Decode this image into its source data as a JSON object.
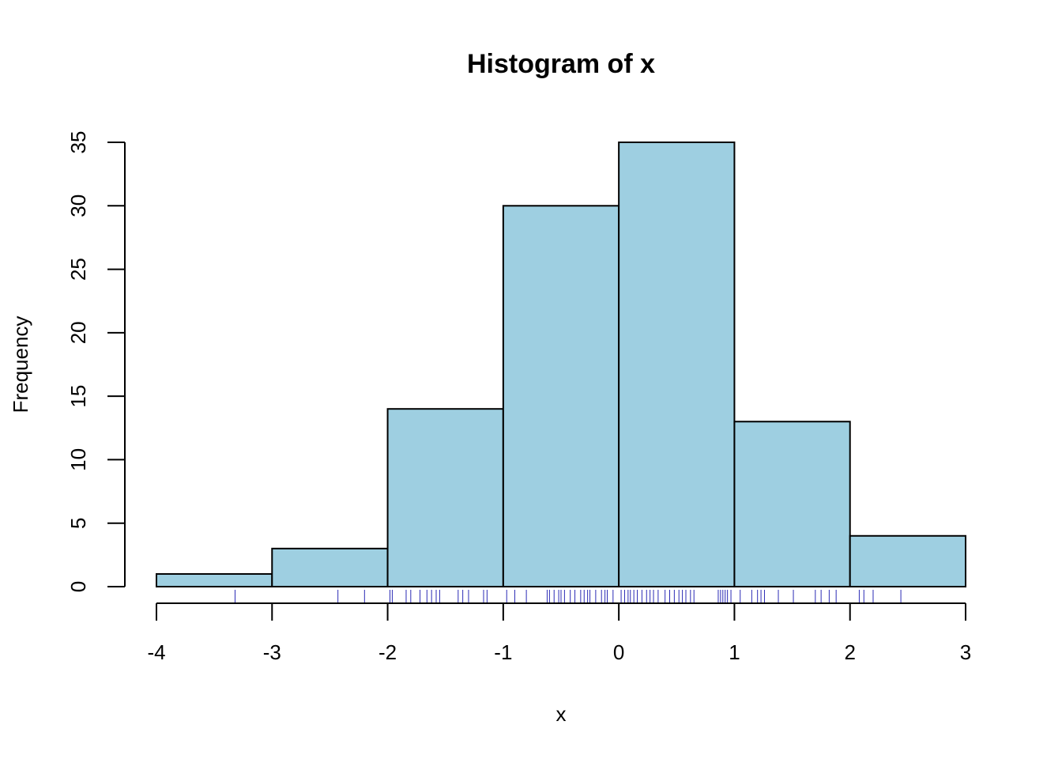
{
  "chart_data": {
    "type": "bar",
    "subtype": "histogram",
    "title": "Histogram of x",
    "xlabel": "x",
    "ylabel": "Frequency",
    "bins": [
      {
        "x0": -4,
        "x1": -3,
        "count": 1
      },
      {
        "x0": -3,
        "x1": -2,
        "count": 3
      },
      {
        "x0": -2,
        "x1": -1,
        "count": 14
      },
      {
        "x0": -1,
        "x1": 0,
        "count": 30
      },
      {
        "x0": 0,
        "x1": 1,
        "count": 35
      },
      {
        "x0": 1,
        "x1": 2,
        "count": 13
      },
      {
        "x0": 2,
        "x1": 3,
        "count": 4
      }
    ],
    "xlim": [
      -4,
      3
    ],
    "ylim": [
      0,
      35
    ],
    "x_ticks": [
      -4,
      -3,
      -2,
      -1,
      0,
      1,
      2,
      3
    ],
    "y_ticks": [
      0,
      5,
      10,
      15,
      20,
      25,
      30,
      35
    ],
    "rug": [
      -3.32,
      -2.43,
      -2.2,
      -1.98,
      -1.96,
      -1.84,
      -1.8,
      -1.72,
      -1.66,
      -1.62,
      -1.58,
      -1.55,
      -1.39,
      -1.35,
      -1.3,
      -1.17,
      -1.14,
      -0.97,
      -0.9,
      -0.8,
      -0.62,
      -0.6,
      -0.56,
      -0.52,
      -0.5,
      -0.47,
      -0.42,
      -0.38,
      -0.33,
      -0.3,
      -0.27,
      -0.25,
      -0.2,
      -0.15,
      -0.12,
      -0.1,
      -0.05,
      0.02,
      0.05,
      0.08,
      0.1,
      0.13,
      0.16,
      0.2,
      0.24,
      0.27,
      0.3,
      0.34,
      0.4,
      0.44,
      0.48,
      0.52,
      0.55,
      0.58,
      0.62,
      0.65,
      0.86,
      0.88,
      0.9,
      0.92,
      0.94,
      0.97,
      1.05,
      1.15,
      1.2,
      1.23,
      1.26,
      1.38,
      1.51,
      1.7,
      1.75,
      1.82,
      1.88,
      2.08,
      2.12,
      2.2,
      2.44
    ],
    "colors": {
      "bar_fill": "#9ecfe1",
      "bar_stroke": "#000000",
      "rug": "#2b2bb5"
    }
  }
}
